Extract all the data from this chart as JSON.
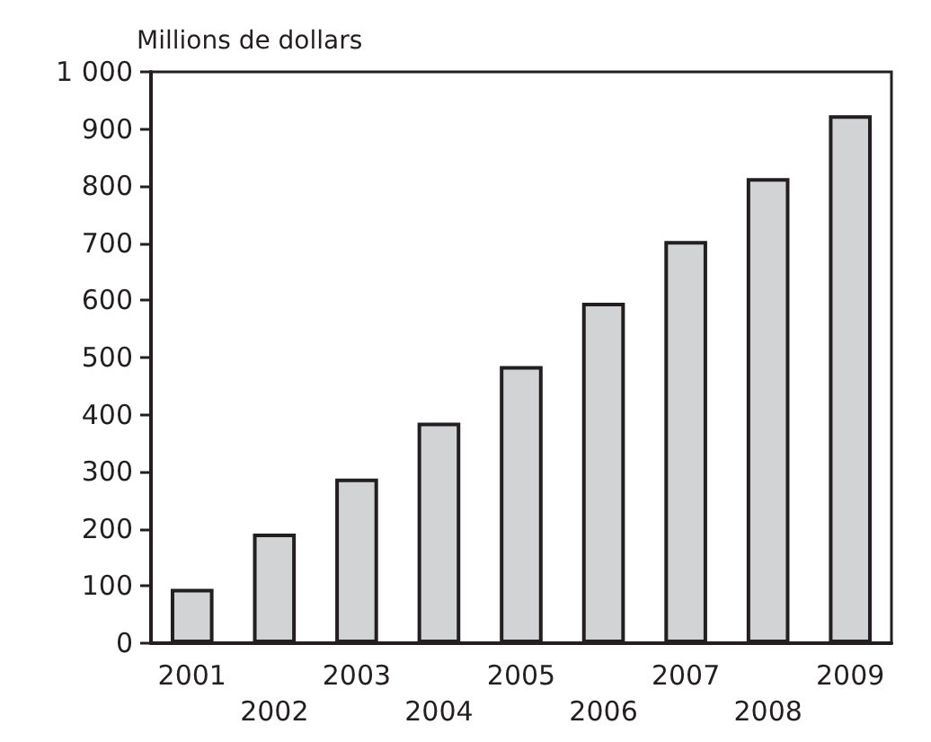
{
  "chart_data": {
    "type": "bar",
    "ylabel": "Millions de dollars",
    "categories": [
      "2001",
      "2002",
      "2003",
      "2004",
      "2005",
      "2006",
      "2007",
      "2008",
      "2009"
    ],
    "values": [
      95,
      192,
      288,
      386,
      485,
      596,
      704,
      814,
      924
    ],
    "color": "#d1d3d4",
    "ylim": [
      0,
      1000
    ],
    "yticks": [
      0,
      100,
      200,
      300,
      400,
      500,
      600,
      700,
      800,
      900,
      {
        "value": 1000,
        "label": "1 000"
      }
    ],
    "grid": false
  }
}
